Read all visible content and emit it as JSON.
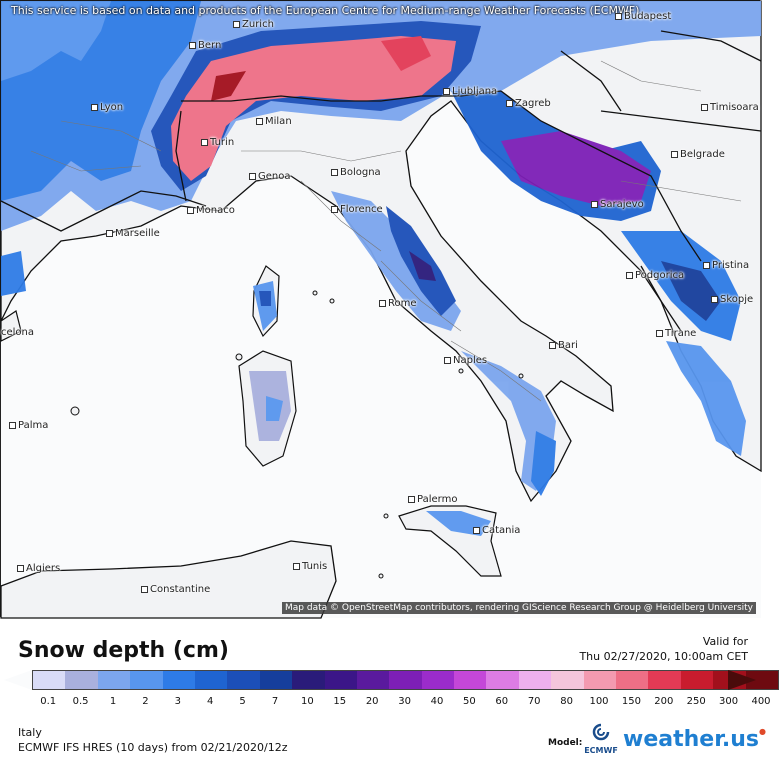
{
  "disclaimer": "This service is based on data and products of the European Centre for Medium-range Weather Forecasts (ECMWF)",
  "map_credit": "Map data © OpenStreetMap contributors, rendering GIScience Research Group @ Heidelberg University",
  "title": "Snow depth (cm)",
  "valid_label": "Valid for",
  "valid_time": "Thu 02/27/2020, 10:00am CET",
  "region": "Italy",
  "run_info": "ECMWF IFS HRES (10 days) from 02/21/2020/12z",
  "model_label": "Model:",
  "ecmwf_logo_text": "ECMWF",
  "brand": "weather.us",
  "cities": {
    "zurich": "Zurich",
    "budapest": "Budapest",
    "bern": "Bern",
    "lyon": "Lyon",
    "milan": "Milan",
    "turin": "Turin",
    "ljubljana": "Ljubljana",
    "zagreb": "Zagreb",
    "timisoara": "Timisoara",
    "belgrade": "Belgrade",
    "genoa": "Genoa",
    "bologna": "Bologna",
    "monaco": "Monaco",
    "florence": "Florence",
    "sarajevo": "Sarajevo",
    "marseille": "Marseille",
    "podgorica": "Podgorica",
    "pristina": "Pristina",
    "skopje": "Skopje",
    "rome": "Rome",
    "barcelona": "celona",
    "tirane": "Tirane",
    "bari": "Bari",
    "naples": "Naples",
    "palma": "Palma",
    "palermo": "Palermo",
    "catania": "Catania",
    "algiers": "Algiers",
    "tunis": "Tunis",
    "constantine": "Constantine"
  },
  "legend": {
    "values": [
      "0.1",
      "0.5",
      "1",
      "2",
      "3",
      "4",
      "5",
      "7",
      "10",
      "15",
      "20",
      "30",
      "40",
      "50",
      "60",
      "70",
      "80",
      "100",
      "150",
      "200",
      "250",
      "300",
      "400"
    ],
    "colors": [
      "#d9dcf7",
      "#a9b0dd",
      "#7ca6ee",
      "#5896ee",
      "#2e7be6",
      "#1f64d1",
      "#1c4fb8",
      "#163e9c",
      "#2a1b7a",
      "#3b1688",
      "#5a1a9e",
      "#7d1fb6",
      "#9b2ccb",
      "#c447d8",
      "#dd7ce4",
      "#eeb0ee",
      "#f4c6dc",
      "#f39ab0",
      "#ee6f86",
      "#e33a55",
      "#c91c2e",
      "#a2101c",
      "#6e0a10"
    ]
  }
}
